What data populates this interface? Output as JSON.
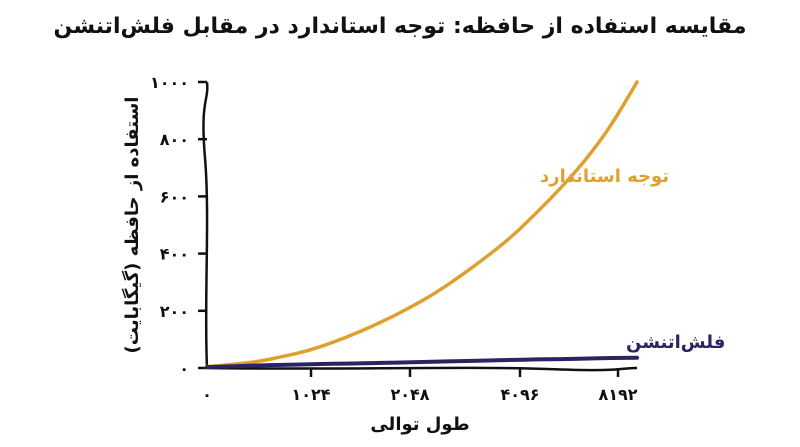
{
  "chart_data": {
    "type": "line",
    "title": "مقایسه استفاده از حافظه: توجه استاندارد در مقابل فلش‌اتنشن",
    "xlabel": "طول توالی",
    "ylabel": "استفاده از حافظه (گیگابایت)",
    "x_tick_labels": [
      "۰",
      "۱۰۲۴",
      "۲۰۴۸",
      "۴۰۹۶",
      "۸۱۹۲"
    ],
    "y_tick_labels": [
      "۰",
      "۲۰۰",
      "۴۰۰",
      "۶۰۰",
      "۸۰۰",
      "۱۰۰۰"
    ],
    "y_ticks": [
      0,
      200,
      400,
      600,
      800,
      1000
    ],
    "ylim": [
      0,
      1000
    ],
    "grid": false,
    "legend": "inline",
    "series": [
      {
        "name": "توجه استاندارد",
        "color": "#E0A030",
        "values": [
          5,
          12,
          22,
          40,
          60,
          90,
          125,
          165,
          210,
          260,
          320,
          385,
          455,
          540,
          630,
          730,
          850,
          1000
        ]
      },
      {
        "name": "فلش‌اتنشن",
        "color": "#2A2463",
        "values": [
          3,
          6,
          9,
          11,
          13,
          15,
          16,
          18,
          20,
          22,
          24,
          26,
          28,
          30,
          31,
          33,
          35,
          36
        ]
      }
    ]
  }
}
